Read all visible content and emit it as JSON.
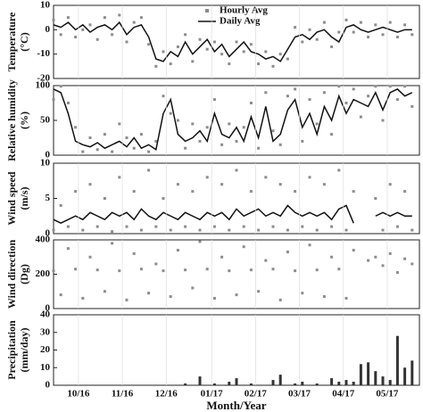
{
  "chart_data": [
    {
      "type": "line",
      "ylabel": [
        "Temperature",
        "(°C)"
      ],
      "ylim": [
        -20,
        10
      ],
      "yticks": [
        -20,
        -10,
        0,
        10
      ],
      "xlim": [
        0,
        250
      ],
      "legend": "top",
      "x": [
        0,
        5,
        10,
        15,
        20,
        25,
        30,
        35,
        40,
        45,
        50,
        55,
        60,
        65,
        70,
        75,
        80,
        85,
        90,
        95,
        100,
        105,
        110,
        115,
        120,
        125,
        130,
        135,
        140,
        145,
        150,
        155,
        160,
        165,
        170,
        175,
        180,
        185,
        190,
        195,
        200,
        205,
        210,
        215,
        220,
        225,
        230,
        235,
        240,
        245
      ],
      "series": [
        {
          "name": "Hourly Avg",
          "style": "points",
          "color": "#8c8c8c",
          "values": [
            4,
            -2,
            5,
            -3,
            0,
            2,
            -4,
            5,
            -2,
            6,
            -5,
            3,
            5,
            -6,
            -15,
            -9,
            -14,
            -7,
            -2,
            -13,
            -4,
            -8,
            -5,
            -10,
            -14,
            -5,
            -9,
            -6,
            -14,
            -9,
            -15,
            -10,
            -12,
            1,
            -5,
            0,
            -4,
            3,
            -7,
            -1,
            4,
            -1,
            3,
            -3,
            2,
            -2,
            3,
            -3,
            2,
            -2
          ]
        },
        {
          "name": "Daily Avg",
          "style": "line",
          "color": "#111111",
          "values": [
            2,
            1,
            3,
            0,
            2,
            -1,
            1,
            2,
            0,
            3,
            -2,
            1,
            2,
            -3,
            -12,
            -13,
            -9,
            -11,
            -5,
            -10,
            -7,
            -4,
            -9,
            -6,
            -11,
            -8,
            -5,
            -9,
            -10,
            -12,
            -11,
            -13,
            -8,
            -3,
            -2,
            -4,
            -1,
            0,
            -3,
            -5,
            1,
            2,
            0,
            -1,
            0,
            1,
            0,
            -1,
            0,
            0
          ]
        }
      ]
    },
    {
      "type": "line",
      "ylabel": [
        "Relative humidity",
        "(%)"
      ],
      "ylim": [
        0,
        100
      ],
      "yticks": [
        0,
        50,
        100
      ],
      "xlim": [
        0,
        250
      ],
      "x": [
        0,
        5,
        10,
        15,
        20,
        25,
        30,
        35,
        40,
        45,
        50,
        55,
        60,
        65,
        70,
        75,
        80,
        85,
        90,
        95,
        100,
        105,
        110,
        115,
        120,
        125,
        130,
        135,
        140,
        145,
        150,
        155,
        160,
        165,
        170,
        175,
        180,
        185,
        190,
        195,
        200,
        205,
        210,
        215,
        220,
        225,
        230,
        235,
        240,
        245
      ],
      "series": [
        {
          "style": "points",
          "color": "#8c8c8c",
          "values": [
            80,
            99,
            75,
            40,
            5,
            25,
            8,
            30,
            5,
            45,
            25,
            10,
            30,
            5,
            20,
            85,
            60,
            50,
            10,
            45,
            20,
            40,
            80,
            15,
            45,
            20,
            40,
            75,
            10,
            90,
            35,
            15,
            85,
            95,
            20,
            80,
            45,
            90,
            30,
            99,
            75,
            95,
            55,
            85,
            99,
            50,
            99,
            80,
            99,
            70
          ]
        },
        {
          "style": "line",
          "color": "#111111",
          "values": [
            95,
            90,
            60,
            20,
            15,
            12,
            18,
            10,
            15,
            20,
            12,
            25,
            10,
            15,
            8,
            60,
            80,
            30,
            20,
            25,
            35,
            20,
            60,
            30,
            25,
            40,
            20,
            55,
            25,
            70,
            20,
            30,
            65,
            80,
            40,
            60,
            30,
            70,
            50,
            85,
            60,
            80,
            75,
            70,
            90,
            65,
            90,
            95,
            85,
            90
          ]
        }
      ]
    },
    {
      "type": "line",
      "ylabel": [
        "Wind speed",
        "(m/s)"
      ],
      "ylim": [
        0,
        10
      ],
      "yticks": [
        0,
        5,
        10
      ],
      "xlim": [
        0,
        250
      ],
      "x": [
        0,
        5,
        10,
        15,
        20,
        25,
        30,
        35,
        40,
        45,
        50,
        55,
        60,
        65,
        70,
        75,
        80,
        85,
        90,
        95,
        100,
        105,
        110,
        115,
        120,
        125,
        130,
        135,
        140,
        145,
        150,
        155,
        160,
        165,
        170,
        175,
        180,
        185,
        190,
        195,
        200,
        205,
        210,
        215,
        220,
        225,
        230,
        235,
        240,
        245
      ],
      "series": [
        {
          "style": "points",
          "color": "#8c8c8c",
          "values": [
            0.5,
            4,
            1,
            6,
            0.5,
            7,
            1,
            5,
            0.3,
            8,
            1,
            6,
            0.5,
            9,
            1,
            5,
            0.5,
            7,
            1,
            6,
            0.5,
            8,
            1,
            7,
            0.5,
            9,
            1,
            6,
            0.5,
            8,
            1,
            7,
            0.5,
            6,
            1,
            8,
            0.5,
            7,
            1,
            9,
            0.5,
            6,
            null,
            null,
            5,
            0.5,
            7,
            1,
            6,
            0.5
          ]
        },
        {
          "style": "line",
          "color": "#111111",
          "values": [
            2,
            1.5,
            2,
            2.5,
            2,
            3,
            2.5,
            2,
            3,
            2.5,
            3,
            2,
            3.5,
            2.5,
            2,
            3,
            2.5,
            2,
            3,
            2.5,
            2,
            3,
            2.5,
            3,
            2,
            3.5,
            2.5,
            3,
            3.5,
            2.5,
            3,
            2.5,
            4,
            3,
            2.5,
            3,
            2.5,
            3,
            2,
            3.5,
            4,
            1.5,
            null,
            null,
            2.5,
            3,
            2.5,
            3,
            2.5,
            2.5
          ]
        }
      ]
    },
    {
      "type": "scatter",
      "ylabel": [
        "Wind direction",
        "(Dg)"
      ],
      "ylim": [
        0,
        400
      ],
      "yticks": [
        0,
        200,
        400
      ],
      "xlim": [
        0,
        250
      ],
      "x": [
        0,
        5,
        10,
        15,
        20,
        25,
        30,
        35,
        40,
        45,
        50,
        55,
        60,
        65,
        70,
        75,
        80,
        85,
        90,
        95,
        100,
        105,
        110,
        115,
        120,
        125,
        130,
        135,
        140,
        145,
        150,
        155,
        160,
        165,
        170,
        175,
        180,
        185,
        190,
        195,
        200,
        205,
        210,
        215,
        220,
        225,
        230,
        235,
        240,
        245
      ],
      "series": [
        {
          "style": "points",
          "color": "#8c8c8c",
          "values": [
            220,
            80,
            350,
            230,
            60,
            300,
            225,
            100,
            380,
            220,
            50,
            320,
            230,
            90,
            260,
            220,
            70,
            340,
            225,
            120,
            390,
            230,
            60,
            300,
            220,
            80,
            360,
            225,
            100,
            280,
            230,
            50,
            330,
            220,
            90,
            370,
            225,
            70,
            300,
            230,
            60,
            340,
            null,
            280,
            300,
            250,
            320,
            210,
            290,
            260
          ]
        }
      ]
    },
    {
      "type": "bar",
      "ylabel": [
        "Precipitation",
        "(mm/day)"
      ],
      "ylim": [
        0,
        40
      ],
      "yticks": [
        0,
        10,
        20,
        30,
        40
      ],
      "xlim": [
        0,
        250
      ],
      "color": "#333333",
      "x": [
        0,
        5,
        10,
        15,
        20,
        25,
        30,
        35,
        40,
        45,
        50,
        55,
        60,
        65,
        70,
        75,
        80,
        85,
        90,
        95,
        100,
        105,
        110,
        115,
        120,
        125,
        130,
        135,
        140,
        145,
        150,
        155,
        160,
        165,
        170,
        175,
        180,
        185,
        190,
        195,
        200,
        205,
        210,
        215,
        220,
        225,
        230,
        235,
        240,
        245
      ],
      "values": [
        0,
        0,
        0,
        0,
        0,
        0,
        0,
        0,
        0,
        0,
        0,
        0,
        0,
        0,
        0,
        0,
        0,
        0,
        1,
        0,
        5,
        0,
        1,
        0,
        2,
        4,
        0,
        1,
        0,
        0,
        3,
        6,
        0,
        1,
        2,
        0,
        1,
        0,
        4,
        2,
        3,
        2,
        12,
        13,
        8,
        5,
        3,
        28,
        10,
        14
      ],
      "xticks": [
        {
          "value": 17,
          "label": "10/16"
        },
        {
          "value": 47,
          "label": "11/16"
        },
        {
          "value": 77,
          "label": "12/16"
        },
        {
          "value": 108,
          "label": "01/17"
        },
        {
          "value": 138,
          "label": "02/17"
        },
        {
          "value": 168,
          "label": "03/17"
        },
        {
          "value": 198,
          "label": "04/17"
        },
        {
          "value": 228,
          "label": "05/17"
        }
      ],
      "xlabel": "Month/Year"
    }
  ]
}
